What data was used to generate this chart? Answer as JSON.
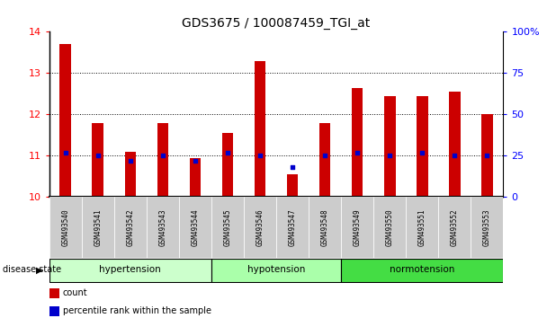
{
  "title": "GDS3675 / 100087459_TGI_at",
  "samples": [
    "GSM493540",
    "GSM493541",
    "GSM493542",
    "GSM493543",
    "GSM493544",
    "GSM493545",
    "GSM493546",
    "GSM493547",
    "GSM493548",
    "GSM493549",
    "GSM493550",
    "GSM493551",
    "GSM493552",
    "GSM493553"
  ],
  "count_values": [
    13.7,
    11.8,
    11.1,
    11.8,
    10.95,
    11.55,
    13.3,
    10.55,
    11.8,
    12.65,
    12.45,
    12.45,
    12.55,
    12.0
  ],
  "percentile_values": [
    27,
    25,
    22,
    25,
    22,
    27,
    25,
    18,
    25,
    27,
    25,
    27,
    25,
    25
  ],
  "ylim_left": [
    10,
    14
  ],
  "ylim_right": [
    0,
    100
  ],
  "yticks_left": [
    10,
    11,
    12,
    13,
    14
  ],
  "yticks_right": [
    0,
    25,
    50,
    75,
    100
  ],
  "ytick_right_labels": [
    "0",
    "25",
    "50",
    "75",
    "100%"
  ],
  "groups": [
    {
      "label": "hypertension",
      "start": 0,
      "end": 4,
      "color": "#ccffcc"
    },
    {
      "label": "hypotension",
      "start": 5,
      "end": 8,
      "color": "#aaffaa"
    },
    {
      "label": "normotension",
      "start": 9,
      "end": 13,
      "color": "#44dd44"
    }
  ],
  "bar_color": "#cc0000",
  "dot_color": "#0000cc",
  "bar_bottom": 10,
  "bar_width": 0.35,
  "disease_state_label": "disease state",
  "legend_count": "count",
  "legend_pct": "percentile rank within the sample"
}
